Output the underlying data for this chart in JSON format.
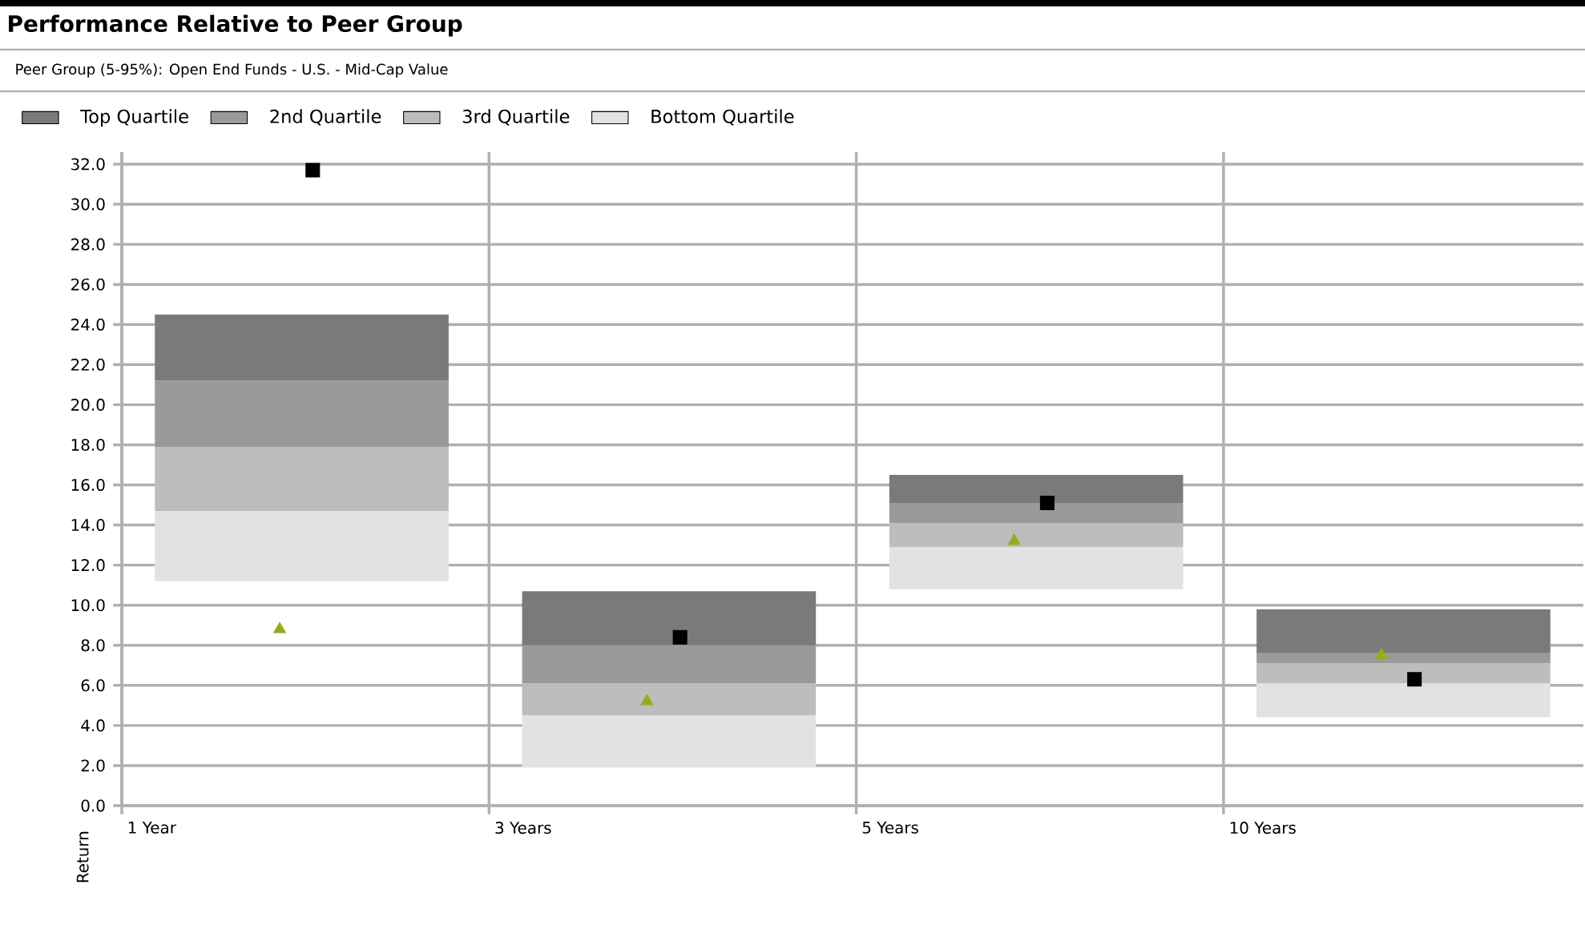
{
  "chart_data": {
    "type": "bar",
    "title": "Performance Relative to Peer Group",
    "subtitle": "Peer Group (5-95%): Open End Funds - U.S. - Mid-Cap Value",
    "ylabel": "Return",
    "categories": [
      "1 Year",
      "3 Years",
      "5 Years",
      "10 Years"
    ],
    "stacked": true,
    "series": [
      {
        "name": "Bottom Quartile",
        "color": "#e2e2e2",
        "base": [
          11.2,
          1.9,
          10.8,
          4.4
        ],
        "values": [
          3.5,
          2.6,
          2.1,
          1.7
        ]
      },
      {
        "name": "3rd Quartile",
        "color": "#bdbdbd",
        "values": [
          3.2,
          1.6,
          1.2,
          1.0
        ]
      },
      {
        "name": "2nd Quartile",
        "color": "#9a9a9a",
        "values": [
          3.3,
          1.9,
          1.0,
          0.5
        ]
      },
      {
        "name": "Top Quartile",
        "color": "#7a7a7a",
        "values": [
          3.3,
          2.7,
          1.4,
          2.2
        ]
      },
      {
        "type": "scatter",
        "marker": "triangle",
        "color": "#9aaa1a",
        "x": [
          "1 Year",
          "3 Years",
          "5 Years",
          "10 Years"
        ],
        "values": [
          8.8,
          5.2,
          13.2,
          7.5
        ]
      },
      {
        "type": "scatter",
        "marker": "square",
        "color": "#000000",
        "x": [
          "1 Year",
          "3 Years",
          "5 Years",
          "10 Years"
        ],
        "values": [
          31.7,
          8.4,
          15.1,
          6.3
        ]
      }
    ],
    "ylim": [
      0,
      32.6
    ],
    "yticks": [
      {
        "value": 0,
        "label": "0.0"
      },
      {
        "value": 2,
        "label": "2.0"
      },
      {
        "value": 4,
        "label": "4.0"
      },
      {
        "value": 6,
        "label": "6.0"
      },
      {
        "value": 8,
        "label": "8.0"
      },
      {
        "value": 10,
        "label": "10.0"
      },
      {
        "value": 12,
        "label": "12.0"
      },
      {
        "value": 14,
        "label": "14.0"
      },
      {
        "value": 16,
        "label": "16.0"
      },
      {
        "value": 18,
        "label": "18.0"
      },
      {
        "value": 20,
        "label": "20.0"
      },
      {
        "value": 22,
        "label": "22.0"
      },
      {
        "value": 24,
        "label": "24.0"
      },
      {
        "value": 26,
        "label": "26.0"
      },
      {
        "value": 28,
        "label": "28.0"
      },
      {
        "value": 30,
        "label": "30.0"
      },
      {
        "value": 32,
        "label": "32.0"
      }
    ],
    "grid": true,
    "legend": "top left"
  }
}
